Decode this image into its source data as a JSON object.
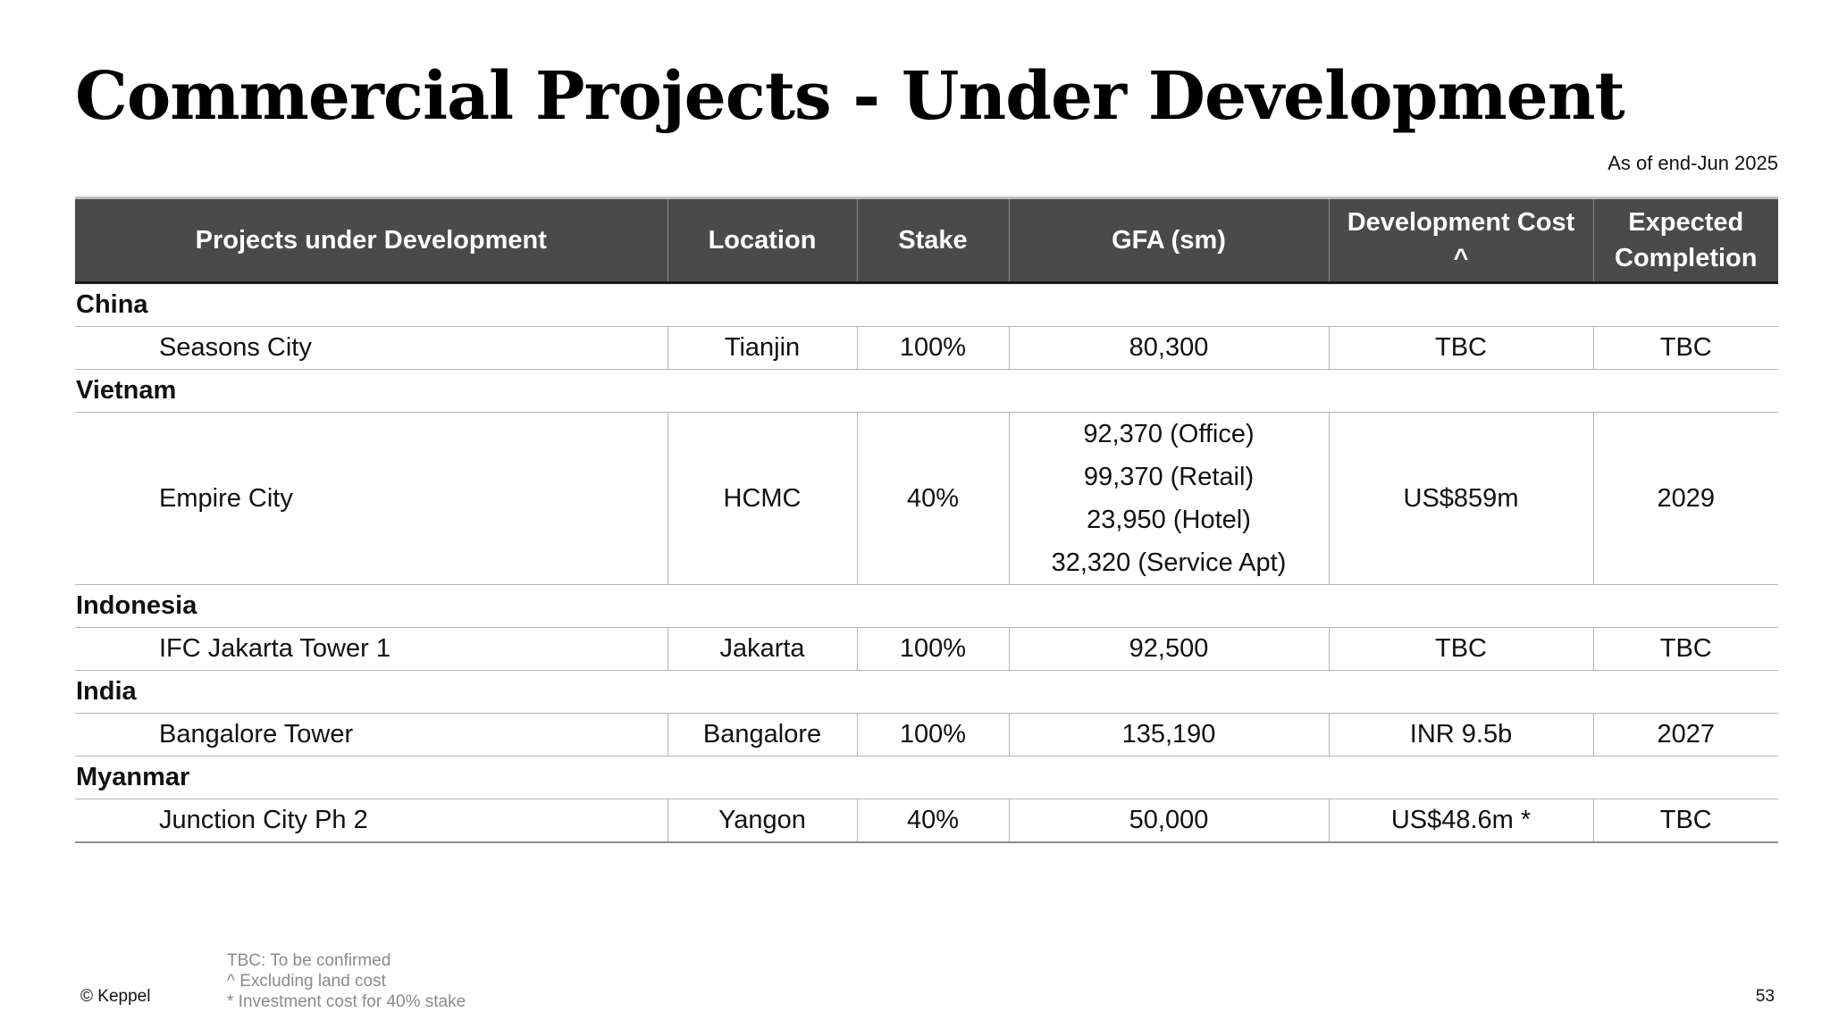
{
  "title": "Commercial Projects - Under Development",
  "as_of": "As of end-Jun 2025",
  "table": {
    "headers": {
      "project": "Projects under Development",
      "location": "Location",
      "stake": "Stake",
      "gfa": "GFA (sm)",
      "cost": "Development Cost ^",
      "completion": "Expected Completion"
    },
    "groups": [
      {
        "country": "China",
        "project": "Seasons City",
        "location": "Tianjin",
        "stake": "100%",
        "gfa": "80,300",
        "cost": "TBC",
        "completion": "TBC"
      },
      {
        "country": "Vietnam",
        "project": "Empire City",
        "location": "HCMC",
        "stake": "40%",
        "gfa_lines": [
          "92,370 (Office)",
          "99,370 (Retail)",
          "23,950 (Hotel)",
          "32,320 (Service Apt)"
        ],
        "cost": "US$859m",
        "completion": "2029"
      },
      {
        "country": "Indonesia",
        "project": "IFC Jakarta Tower 1",
        "location": "Jakarta",
        "stake": "100%",
        "gfa": "92,500",
        "cost": "TBC",
        "completion": "TBC"
      },
      {
        "country": "India",
        "project": "Bangalore Tower",
        "location": "Bangalore",
        "stake": "100%",
        "gfa": "135,190",
        "cost": "INR 9.5b",
        "completion": "2027"
      },
      {
        "country": "Myanmar",
        "project": "Junction City Ph 2",
        "location": "Yangon",
        "stake": "40%",
        "gfa": "50,000",
        "cost": "US$48.6m *",
        "completion": "TBC"
      }
    ]
  },
  "footer": {
    "copyright": "© Keppel",
    "notes": [
      "TBC: To be confirmed",
      "^ Excluding land cost",
      "* Investment cost for 40% stake"
    ],
    "page_number": "53"
  },
  "colors": {
    "header_bg": "#4a4a4a",
    "header_text": "#ffffff",
    "note_text": "#8a8a8a"
  }
}
